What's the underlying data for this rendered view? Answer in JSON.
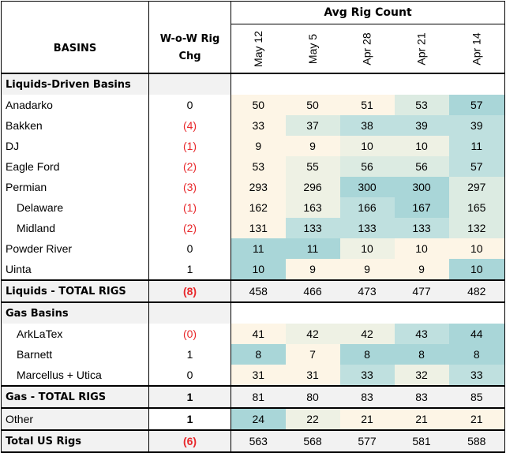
{
  "header": {
    "group_title": "Avg Rig Count",
    "basins_label": "BASINS",
    "wow_label_line1": "W-o-W Rig",
    "wow_label_line2": "Chg",
    "weeks": [
      "May 12",
      "May 5",
      "Apr 28",
      "Apr 21",
      "Apr 14"
    ]
  },
  "rows": [
    {
      "kind": "section",
      "label": "Liquids-Driven Basins"
    },
    {
      "kind": "row",
      "label": "Anadarko",
      "wow": "0",
      "neg": false,
      "values": [
        "50",
        "50",
        "51",
        "53",
        "57"
      ],
      "heat": [
        0,
        0,
        0,
        2,
        4
      ]
    },
    {
      "kind": "row",
      "label": "Bakken",
      "wow": "(4)",
      "neg": true,
      "values": [
        "33",
        "37",
        "38",
        "39",
        "39"
      ],
      "heat": [
        0,
        2,
        3,
        3,
        3
      ]
    },
    {
      "kind": "row",
      "label": "DJ",
      "wow": "(1)",
      "neg": true,
      "values": [
        "9",
        "9",
        "10",
        "10",
        "11"
      ],
      "heat": [
        0,
        0,
        1,
        1,
        3
      ]
    },
    {
      "kind": "row",
      "label": "Eagle Ford",
      "wow": "(2)",
      "neg": true,
      "values": [
        "53",
        "55",
        "56",
        "56",
        "57"
      ],
      "heat": [
        0,
        1,
        2,
        2,
        3
      ]
    },
    {
      "kind": "row",
      "label": "Permian",
      "wow": "(3)",
      "neg": true,
      "values": [
        "293",
        "296",
        "300",
        "300",
        "297"
      ],
      "heat": [
        0,
        1,
        4,
        4,
        2
      ]
    },
    {
      "kind": "row",
      "label": "Delaware",
      "indent": true,
      "wow": "(1)",
      "neg": true,
      "values": [
        "162",
        "163",
        "166",
        "167",
        "165"
      ],
      "heat": [
        0,
        1,
        3,
        4,
        2
      ]
    },
    {
      "kind": "row",
      "label": "Midland",
      "indent": true,
      "wow": "(2)",
      "neg": true,
      "values": [
        "131",
        "133",
        "133",
        "133",
        "132"
      ],
      "heat": [
        0,
        3,
        3,
        3,
        2
      ]
    },
    {
      "kind": "row",
      "label": "Powder River",
      "wow": "0",
      "neg": false,
      "values": [
        "11",
        "11",
        "10",
        "10",
        "10"
      ],
      "heat": [
        4,
        4,
        1,
        0,
        0
      ]
    },
    {
      "kind": "row",
      "label": "Uinta",
      "wow": "1",
      "neg": false,
      "values": [
        "10",
        "9",
        "9",
        "9",
        "10"
      ],
      "heat": [
        4,
        0,
        0,
        0,
        4
      ]
    },
    {
      "kind": "total",
      "label": "Liquids - TOTAL RIGS",
      "wow": "(8)",
      "neg": true,
      "values": [
        "458",
        "466",
        "473",
        "477",
        "482"
      ],
      "heat": [
        0,
        1,
        2,
        3,
        4
      ]
    },
    {
      "kind": "section",
      "label": "Gas Basins"
    },
    {
      "kind": "row",
      "label": "ArkLaTex",
      "indent": true,
      "wow": "(0)",
      "neg": true,
      "values": [
        "41",
        "42",
        "42",
        "43",
        "44"
      ],
      "heat": [
        0,
        1,
        1,
        3,
        4
      ]
    },
    {
      "kind": "row",
      "label": "Barnett",
      "indent": true,
      "wow": "1",
      "neg": false,
      "values": [
        "8",
        "7",
        "8",
        "8",
        "8"
      ],
      "heat": [
        4,
        0,
        4,
        4,
        4
      ]
    },
    {
      "kind": "row",
      "label": "Marcellus + Utica",
      "indent": true,
      "wow": "0",
      "neg": false,
      "values": [
        "31",
        "31",
        "33",
        "32",
        "33"
      ],
      "heat": [
        0,
        0,
        3,
        1,
        3
      ]
    },
    {
      "kind": "total",
      "label": "Gas - TOTAL RIGS",
      "wow": "1",
      "neg": false,
      "values": [
        "81",
        "80",
        "83",
        "83",
        "85"
      ],
      "heat": [
        0,
        0,
        2,
        2,
        4
      ]
    },
    {
      "kind": "other",
      "label": "Other",
      "wow": "1",
      "neg": false,
      "values": [
        "24",
        "22",
        "21",
        "21",
        "21"
      ],
      "heat": [
        4,
        1,
        0,
        0,
        0
      ]
    },
    {
      "kind": "total",
      "label": "Total US Rigs",
      "wow": "(6)",
      "neg": true,
      "values": [
        "563",
        "568",
        "577",
        "581",
        "588"
      ],
      "heat": [
        0,
        1,
        2,
        3,
        4
      ]
    }
  ]
}
